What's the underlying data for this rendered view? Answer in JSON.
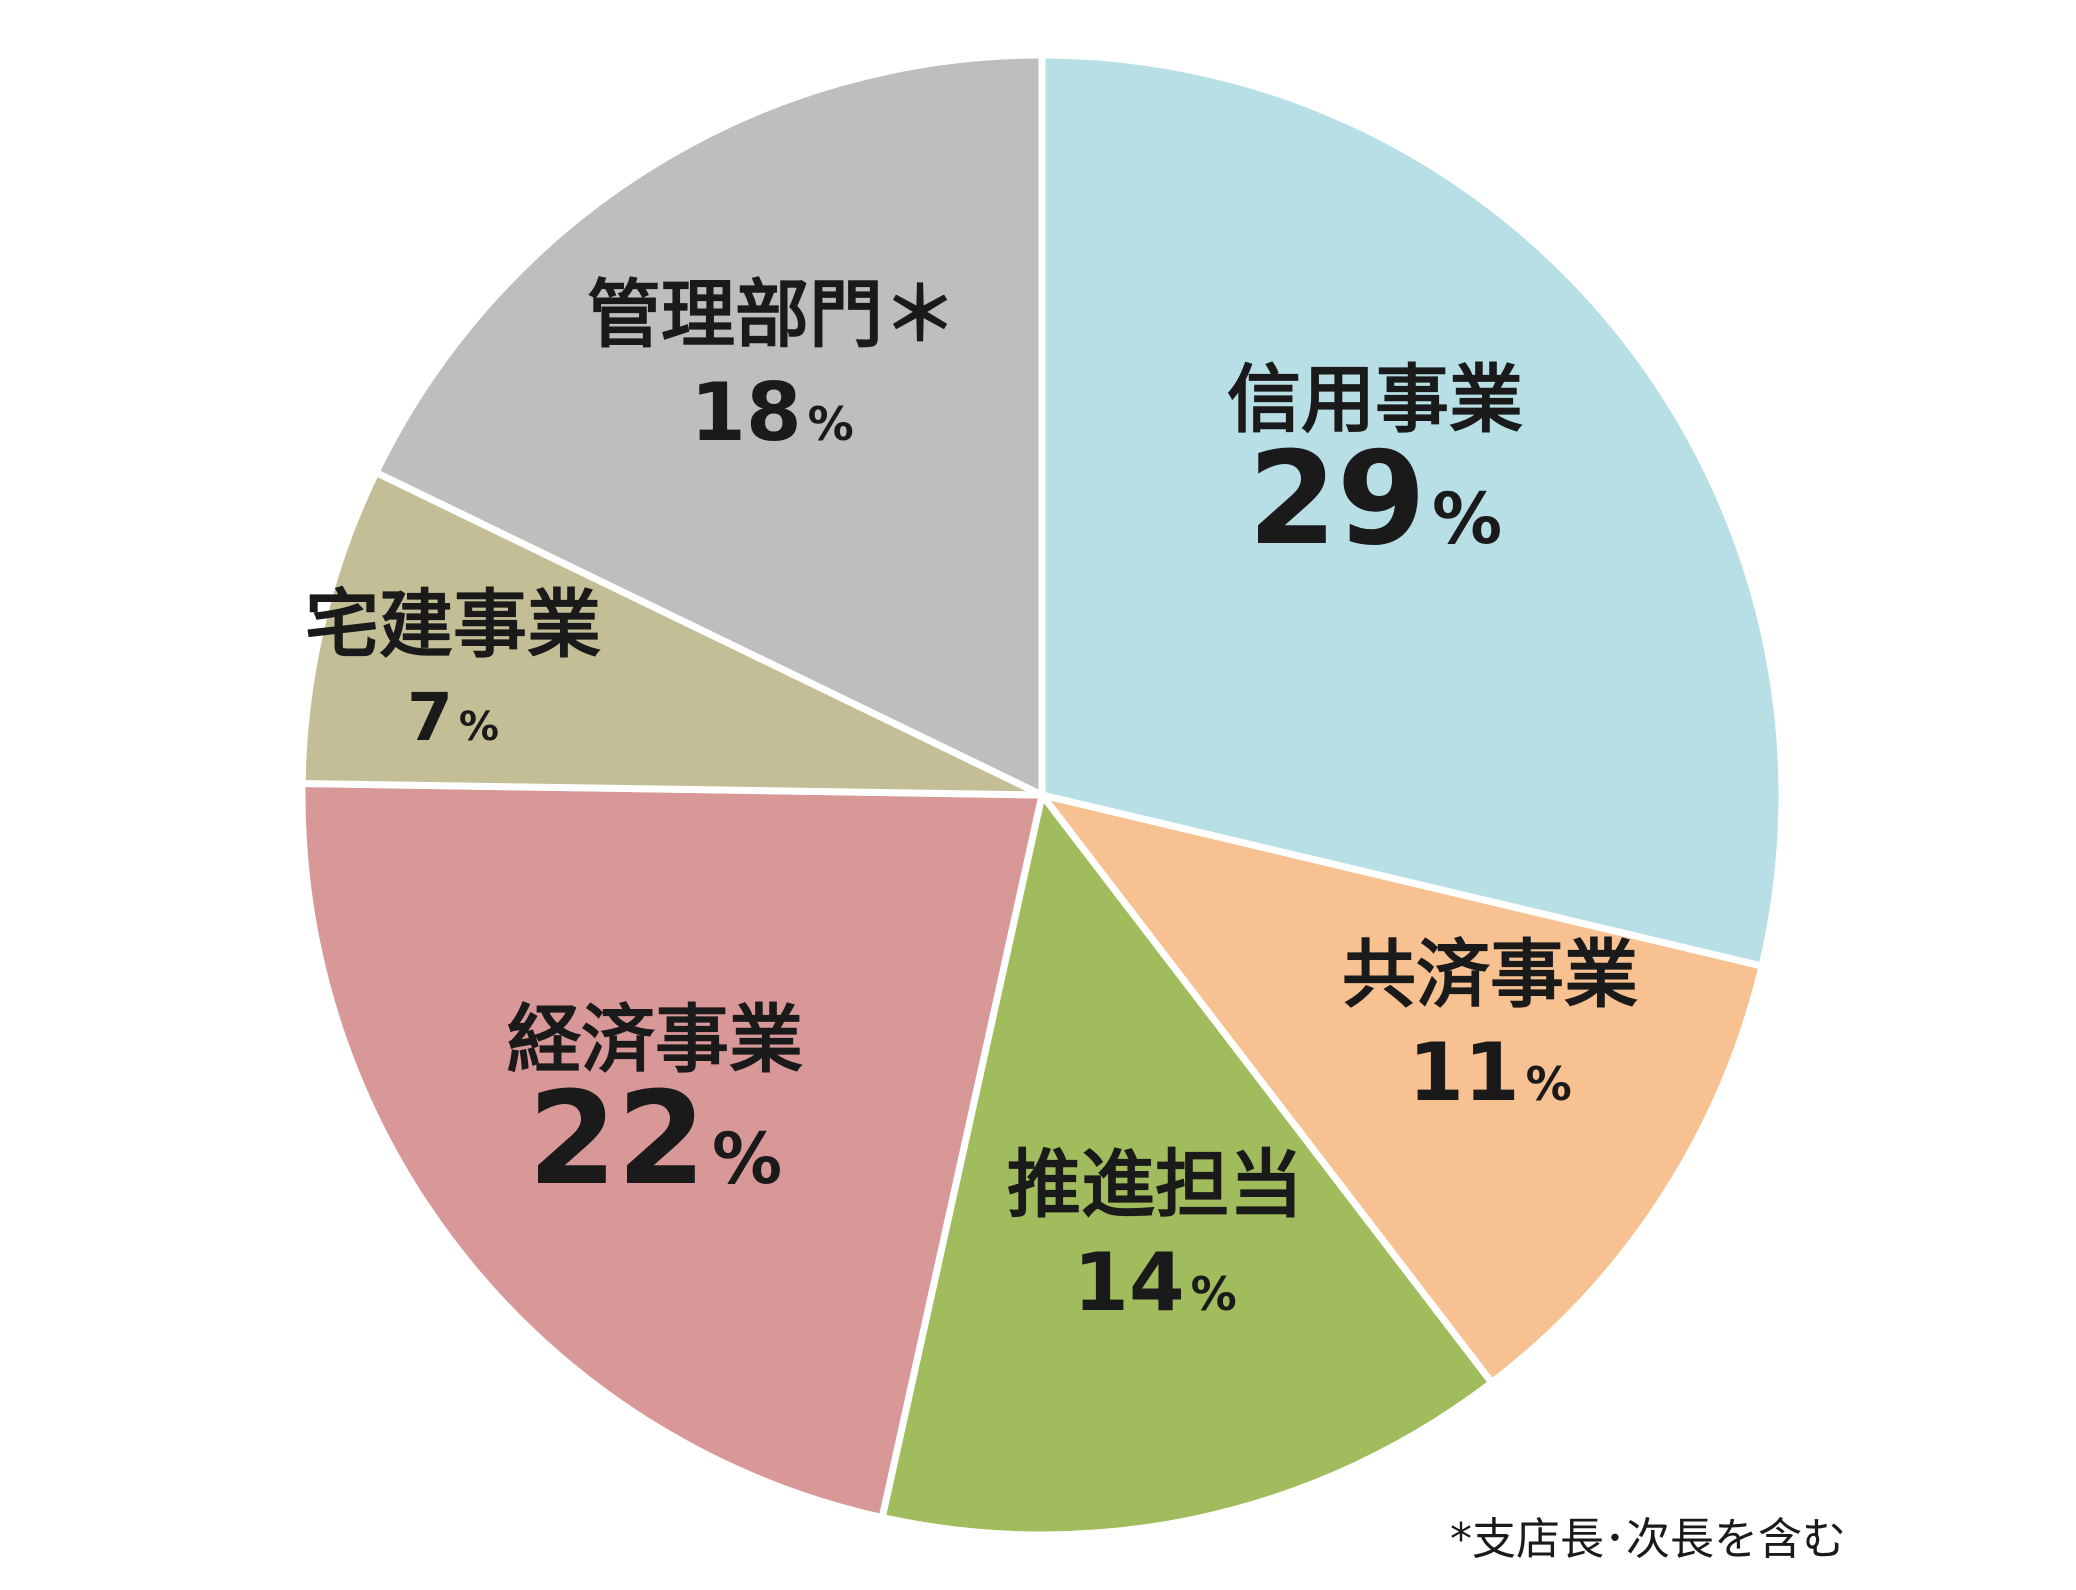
{
  "chart_data": {
    "type": "pie",
    "start_angle_deg": 0,
    "direction": "clockwise",
    "slices": [
      {
        "label": "信用事業",
        "value": 29,
        "value_text": "29",
        "unit": "%",
        "color": "#b8dfe6",
        "size": "large"
      },
      {
        "label": "共済事業",
        "value": 11,
        "value_text": "11",
        "unit": "%",
        "color": "#f7c192",
        "size": "medium"
      },
      {
        "label": "推進担当",
        "value": 14,
        "value_text": "14",
        "unit": "%",
        "color": "#a0bc5d",
        "size": "medium"
      },
      {
        "label": "経済事業",
        "value": 22,
        "value_text": "22",
        "unit": "%",
        "color": "#d89898",
        "size": "large"
      },
      {
        "label": "宅建事業",
        "value": 7,
        "value_text": "7",
        "unit": "%",
        "color": "#c4be96",
        "size": "small"
      },
      {
        "label": "管理部門＊",
        "value": 18,
        "value_text": "18",
        "unit": "%",
        "color": "#bebebe",
        "size": "medium"
      }
    ]
  },
  "footnote": "*支店長･次長を含む"
}
